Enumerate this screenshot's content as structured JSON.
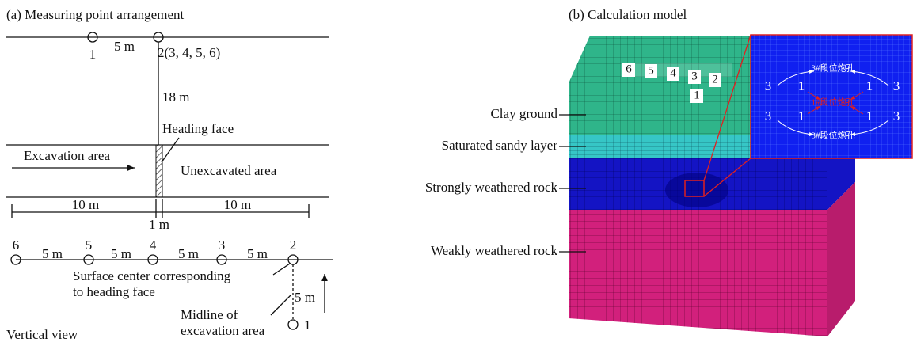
{
  "panel_a": {
    "title": "(a) Measuring point arrangement",
    "section": {
      "point_1": "1",
      "point_2": "2(3, 4, 5, 6)",
      "spacing": "5 m",
      "depth": "18 m",
      "heading_face": "Heading face",
      "excavation_area": "Excavation area",
      "unexcavated_area": "Unexcavated area",
      "left_length": "10 m",
      "right_length": "10 m",
      "face_width": "1 m"
    },
    "plan": {
      "points": [
        "6",
        "5",
        "4",
        "3",
        "2"
      ],
      "spacings": [
        "5 m",
        "5 m",
        "5 m",
        "5 m"
      ],
      "point_1": "1",
      "vertical_spacing": "5 m",
      "surface_center": [
        "Surface center corresponding",
        "to heading face"
      ],
      "midline": [
        "Midline of",
        "excavation area"
      ],
      "caption": "Vertical view"
    }
  },
  "panel_b": {
    "title": "(b) Calculation model",
    "layers": [
      "Clay ground",
      "Saturated sandy layer",
      "Strongly weathered rock",
      "Weakly weathered rock"
    ],
    "points": [
      "6",
      "5",
      "4",
      "3",
      "2",
      "1"
    ],
    "inset": {
      "top_group": "3#段位炮孔",
      "upper_row": [
        "3",
        "1",
        "1",
        "3"
      ],
      "middle_group": "1#段位炮孔",
      "lower_row": [
        "3",
        "1",
        "1",
        "3"
      ],
      "bottom_group": "3#段位炮孔"
    }
  }
}
